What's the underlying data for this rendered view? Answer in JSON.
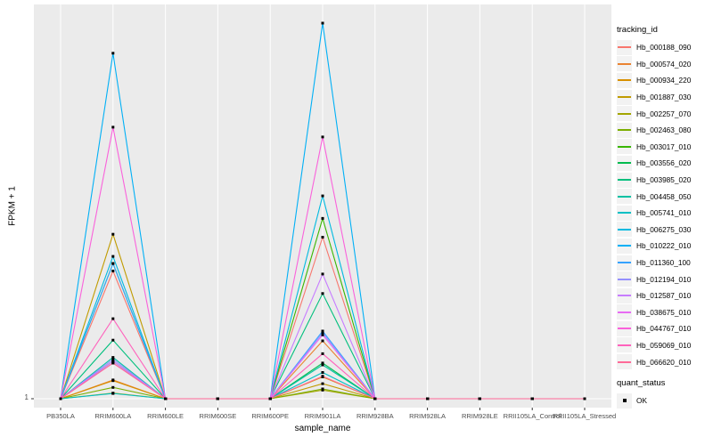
{
  "figure": {
    "background": "#FFFFFF",
    "panel_background": "#EBEBEB",
    "gridline_color": "#FFFFFF",
    "tick_color": "#333333",
    "tick_label_color": "#4D4D4D",
    "marker_color": "#000000"
  },
  "legend": {
    "tracking_title": "tracking_id",
    "quant_title": "quant_status",
    "quant_value": "OK"
  },
  "chart_data": {
    "type": "line",
    "title": "",
    "xlabel": "sample_name",
    "ylabel": "FPKM + 1",
    "y_tick_labels": [
      "1"
    ],
    "ylim_note": "y axis starts at FPKM+1 = 1 (only labeled tick); series values are peak heights as percent of panel height above the y=1 baseline",
    "legend_position": "right",
    "grid": "white vertical gridline at each category, white horizontal gridline at y=1, gray panel",
    "marker": "black square at every data point (quant_status OK)",
    "categories": [
      "PB350LA",
      "RRIM600LA",
      "RRIM600LE",
      "RRIM600SE",
      "RRIM600PE",
      "RRIM901LA",
      "RRIM928BA",
      "RRIM928LA",
      "RRIM928LE",
      "RRII105LA_Control",
      "RRII105LA_Stressed"
    ],
    "series": [
      {
        "name": "Hb_000188_090",
        "color": "#F8766D",
        "values": [
          0,
          34,
          0,
          0,
          0,
          43,
          0,
          0,
          0,
          0,
          0
        ]
      },
      {
        "name": "Hb_000574_020",
        "color": "#EA8331",
        "values": [
          0,
          5,
          0,
          0,
          0,
          15.4,
          0,
          0,
          0,
          0,
          0
        ]
      },
      {
        "name": "Hb_000934_220",
        "color": "#D89000",
        "values": [
          0,
          4.8,
          0,
          0,
          0,
          5.8,
          0,
          0,
          0,
          0,
          0
        ]
      },
      {
        "name": "Hb_001887_030",
        "color": "#C09B00",
        "values": [
          0,
          43.8,
          0,
          0,
          0,
          4,
          0,
          0,
          0,
          0,
          0
        ]
      },
      {
        "name": "Hb_002257_070",
        "color": "#A3A500",
        "values": [
          0,
          1.5,
          0,
          0,
          0,
          2.3,
          0,
          0,
          0,
          0,
          0
        ]
      },
      {
        "name": "Hb_002463_080",
        "color": "#7CAE00",
        "values": [
          0,
          3,
          0,
          0,
          0,
          2.6,
          0,
          0,
          0,
          0,
          0
        ]
      },
      {
        "name": "Hb_003017_010",
        "color": "#39B600",
        "values": [
          0,
          10,
          0,
          0,
          0,
          48,
          0,
          0,
          0,
          0,
          0
        ]
      },
      {
        "name": "Hb_003556_020",
        "color": "#00BB4E",
        "values": [
          0,
          36,
          0,
          0,
          0,
          9.5,
          0,
          0,
          0,
          0,
          0
        ]
      },
      {
        "name": "Hb_003985_020",
        "color": "#00BF7D",
        "values": [
          0,
          15.6,
          0,
          0,
          0,
          28,
          0,
          0,
          0,
          0,
          0
        ]
      },
      {
        "name": "Hb_004458_050",
        "color": "#00C1A3",
        "values": [
          0,
          11,
          0,
          0,
          0,
          9,
          0,
          0,
          0,
          0,
          0
        ]
      },
      {
        "name": "Hb_005741_010",
        "color": "#00BFC4",
        "values": [
          0,
          1.4,
          0,
          0,
          0,
          7,
          0,
          0,
          0,
          0,
          0
        ]
      },
      {
        "name": "Hb_006275_030",
        "color": "#00BAE0",
        "values": [
          0,
          37.9,
          0,
          0,
          0,
          54,
          0,
          0,
          0,
          0,
          0
        ]
      },
      {
        "name": "Hb_010222_010",
        "color": "#00B0F6",
        "values": [
          0,
          92,
          0,
          0,
          0,
          100,
          0,
          0,
          0,
          0,
          0
        ]
      },
      {
        "name": "Hb_011360_100",
        "color": "#35A2FF",
        "values": [
          0,
          36,
          0,
          0,
          0,
          18,
          0,
          0,
          0,
          0,
          0
        ]
      },
      {
        "name": "Hb_012194_010",
        "color": "#9590FF",
        "values": [
          0,
          10.5,
          0,
          0,
          0,
          17.5,
          0,
          0,
          0,
          0,
          0
        ]
      },
      {
        "name": "Hb_012587_010",
        "color": "#C77CFF",
        "values": [
          0,
          10,
          0,
          0,
          0,
          33.2,
          0,
          0,
          0,
          0,
          0
        ]
      },
      {
        "name": "Hb_038675_010",
        "color": "#E76BF3",
        "values": [
          0,
          9.5,
          0,
          0,
          0,
          17,
          0,
          0,
          0,
          0,
          0
        ]
      },
      {
        "name": "Hb_044767_010",
        "color": "#FA62DB",
        "values": [
          0,
          72.3,
          0,
          0,
          0,
          69.7,
          0,
          0,
          0,
          0,
          0
        ]
      },
      {
        "name": "Hb_059069_010",
        "color": "#FF62BC",
        "values": [
          0,
          21.3,
          0,
          0,
          0,
          12,
          0,
          0,
          0,
          0,
          0
        ]
      },
      {
        "name": "Hb_066620_010",
        "color": "#FF6A98",
        "values": [
          0,
          9.5,
          0,
          0,
          0,
          6,
          0,
          0,
          0,
          0,
          0
        ]
      }
    ]
  }
}
